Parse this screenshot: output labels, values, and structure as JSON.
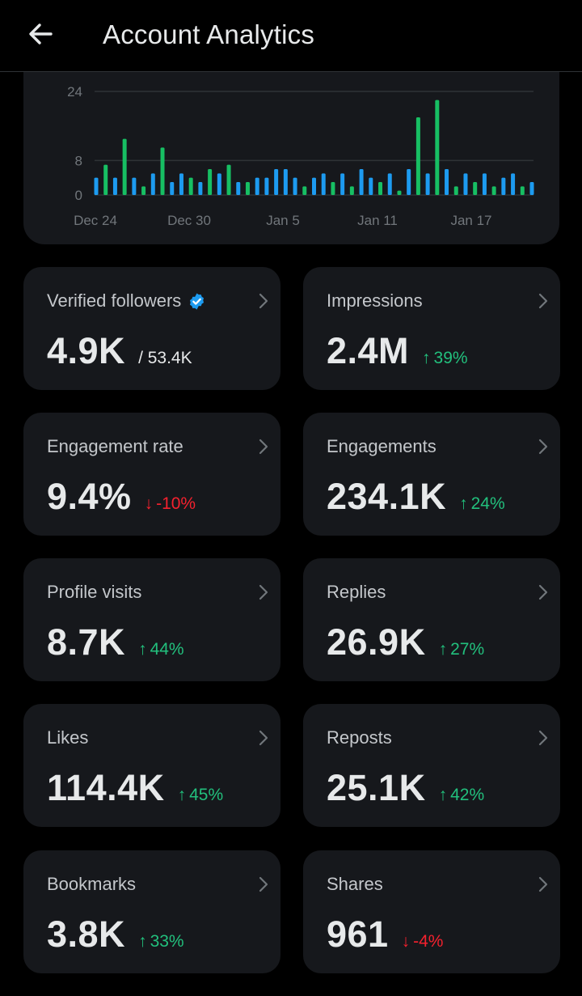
{
  "header": {
    "title": "Account Analytics"
  },
  "chart_data": {
    "type": "bar",
    "y_ticks": [
      "24",
      "8",
      "0"
    ],
    "x_ticks": [
      "Dec 24",
      "Dec 30",
      "Jan 5",
      "Jan 11",
      "Jan 17"
    ],
    "ylim": [
      0,
      24
    ],
    "grid": true,
    "colors": {
      "blue": "#1d9bf0",
      "green": "#17bf63"
    },
    "bars": [
      {
        "c": "blue",
        "v": 4
      },
      {
        "c": "green",
        "v": 7
      },
      {
        "c": "blue",
        "v": 4
      },
      {
        "c": "green",
        "v": 13
      },
      {
        "c": "blue",
        "v": 4
      },
      {
        "c": "green",
        "v": 2
      },
      {
        "c": "blue",
        "v": 5
      },
      {
        "c": "green",
        "v": 11
      },
      {
        "c": "blue",
        "v": 3
      },
      {
        "c": "blue",
        "v": 5
      },
      {
        "c": "green",
        "v": 4
      },
      {
        "c": "blue",
        "v": 3
      },
      {
        "c": "green",
        "v": 6
      },
      {
        "c": "blue",
        "v": 5
      },
      {
        "c": "green",
        "v": 7
      },
      {
        "c": "blue",
        "v": 3
      },
      {
        "c": "green",
        "v": 3
      },
      {
        "c": "blue",
        "v": 4
      },
      {
        "c": "blue",
        "v": 4
      },
      {
        "c": "blue",
        "v": 6
      },
      {
        "c": "blue",
        "v": 6
      },
      {
        "c": "blue",
        "v": 4
      },
      {
        "c": "green",
        "v": 2
      },
      {
        "c": "blue",
        "v": 4
      },
      {
        "c": "blue",
        "v": 5
      },
      {
        "c": "green",
        "v": 3
      },
      {
        "c": "blue",
        "v": 5
      },
      {
        "c": "green",
        "v": 2
      },
      {
        "c": "blue",
        "v": 6
      },
      {
        "c": "blue",
        "v": 4
      },
      {
        "c": "green",
        "v": 3
      },
      {
        "c": "blue",
        "v": 5
      },
      {
        "c": "green",
        "v": 1
      },
      {
        "c": "blue",
        "v": 6
      },
      {
        "c": "green",
        "v": 18
      },
      {
        "c": "blue",
        "v": 5
      },
      {
        "c": "green",
        "v": 22
      },
      {
        "c": "blue",
        "v": 6
      },
      {
        "c": "green",
        "v": 2
      },
      {
        "c": "blue",
        "v": 5
      },
      {
        "c": "green",
        "v": 3
      },
      {
        "c": "blue",
        "v": 5
      },
      {
        "c": "green",
        "v": 2
      },
      {
        "c": "blue",
        "v": 4
      },
      {
        "c": "blue",
        "v": 5
      },
      {
        "c": "green",
        "v": 2
      },
      {
        "c": "blue",
        "v": 3
      }
    ]
  },
  "cards": [
    {
      "label": "Verified followers",
      "value": "4.9K",
      "sub": "/ 53.4K",
      "verified": true
    },
    {
      "label": "Impressions",
      "value": "2.4M",
      "delta": "39%",
      "dir": "up"
    },
    {
      "label": "Engagement rate",
      "value": "9.4%",
      "delta": "-10%",
      "dir": "down"
    },
    {
      "label": "Engagements",
      "value": "234.1K",
      "delta": "24%",
      "dir": "up"
    },
    {
      "label": "Profile visits",
      "value": "8.7K",
      "delta": "44%",
      "dir": "up"
    },
    {
      "label": "Replies",
      "value": "26.9K",
      "delta": "27%",
      "dir": "up"
    },
    {
      "label": "Likes",
      "value": "114.4K",
      "delta": "45%",
      "dir": "up"
    },
    {
      "label": "Reposts",
      "value": "25.1K",
      "delta": "42%",
      "dir": "up"
    },
    {
      "label": "Bookmarks",
      "value": "3.8K",
      "delta": "33%",
      "dir": "up"
    },
    {
      "label": "Shares",
      "value": "961",
      "delta": "-4%",
      "dir": "down"
    }
  ],
  "icons": {
    "back": "back-arrow-icon",
    "chevron": "chevron-right-icon",
    "verified": "verified-badge-icon",
    "up": "arrow-up-icon",
    "down": "arrow-down-icon"
  }
}
